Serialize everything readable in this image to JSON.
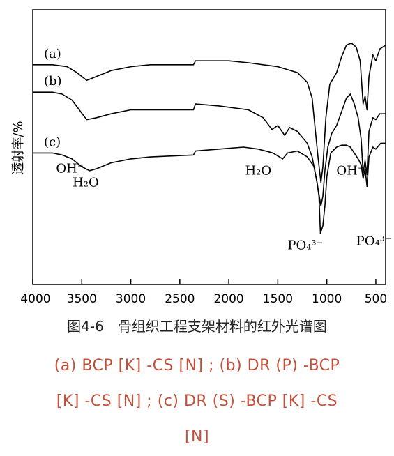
{
  "chart_data": {
    "type": "line",
    "ylabel": "透射率/%",
    "xlim": [
      4000,
      400
    ],
    "xticks": [
      4000,
      3500,
      3000,
      2500,
      2000,
      1500,
      1000,
      500
    ],
    "series": [
      {
        "name": "(a)",
        "points": [
          [
            4000,
            0.72
          ],
          [
            3800,
            0.72
          ],
          [
            3650,
            0.71
          ],
          [
            3550,
            0.68
          ],
          [
            3450,
            0.64
          ],
          [
            3400,
            0.65
          ],
          [
            3200,
            0.69
          ],
          [
            3000,
            0.71
          ],
          [
            2800,
            0.72
          ],
          [
            2360,
            0.72
          ],
          [
            2340,
            0.74
          ],
          [
            2000,
            0.74
          ],
          [
            1800,
            0.73
          ],
          [
            1500,
            0.71
          ],
          [
            1300,
            0.68
          ],
          [
            1200,
            0.63
          ],
          [
            1150,
            0.55
          ],
          [
            1120,
            0.4
          ],
          [
            1090,
            0.25
          ],
          [
            1060,
            0.12
          ],
          [
            1040,
            0.2
          ],
          [
            1010,
            0.45
          ],
          [
            970,
            0.62
          ],
          [
            900,
            0.68
          ],
          [
            850,
            0.76
          ],
          [
            800,
            0.82
          ],
          [
            750,
            0.83
          ],
          [
            700,
            0.81
          ],
          [
            660,
            0.74
          ],
          [
            630,
            0.52
          ],
          [
            610,
            0.56
          ],
          [
            590,
            0.49
          ],
          [
            570,
            0.66
          ],
          [
            530,
            0.77
          ],
          [
            500,
            0.74
          ],
          [
            460,
            0.8
          ],
          [
            400,
            0.82
          ]
        ]
      },
      {
        "name": "(b)",
        "points": [
          [
            4000,
            0.58
          ],
          [
            3800,
            0.58
          ],
          [
            3700,
            0.57
          ],
          [
            3600,
            0.54
          ],
          [
            3450,
            0.44
          ],
          [
            3350,
            0.45
          ],
          [
            3200,
            0.47
          ],
          [
            3000,
            0.49
          ],
          [
            2800,
            0.49
          ],
          [
            2360,
            0.49
          ],
          [
            2340,
            0.52
          ],
          [
            2100,
            0.51
          ],
          [
            1800,
            0.49
          ],
          [
            1650,
            0.45
          ],
          [
            1560,
            0.39
          ],
          [
            1500,
            0.41
          ],
          [
            1430,
            0.36
          ],
          [
            1380,
            0.4
          ],
          [
            1300,
            0.38
          ],
          [
            1200,
            0.32
          ],
          [
            1150,
            0.25
          ],
          [
            1100,
            0.12
          ],
          [
            1060,
            0.0
          ],
          [
            1040,
            0.05
          ],
          [
            1020,
            0.18
          ],
          [
            990,
            0.3
          ],
          [
            950,
            0.37
          ],
          [
            900,
            0.41
          ],
          [
            850,
            0.48
          ],
          [
            800,
            0.55
          ],
          [
            760,
            0.57
          ],
          [
            720,
            0.52
          ],
          [
            680,
            0.45
          ],
          [
            650,
            0.34
          ],
          [
            630,
            0.17
          ],
          [
            610,
            0.23
          ],
          [
            590,
            0.16
          ],
          [
            570,
            0.38
          ],
          [
            530,
            0.45
          ],
          [
            500,
            0.44
          ],
          [
            460,
            0.47
          ],
          [
            400,
            0.47
          ]
        ]
      },
      {
        "name": "(c)",
        "points": [
          [
            4000,
            0.27
          ],
          [
            3800,
            0.27
          ],
          [
            3700,
            0.26
          ],
          [
            3600,
            0.24
          ],
          [
            3500,
            0.2
          ],
          [
            3420,
            0.18
          ],
          [
            3350,
            0.19
          ],
          [
            3200,
            0.22
          ],
          [
            3000,
            0.24
          ],
          [
            2800,
            0.25
          ],
          [
            2360,
            0.26
          ],
          [
            2340,
            0.28
          ],
          [
            2100,
            0.29
          ],
          [
            1850,
            0.3
          ],
          [
            1700,
            0.29
          ],
          [
            1550,
            0.27
          ],
          [
            1450,
            0.24
          ],
          [
            1400,
            0.27
          ],
          [
            1300,
            0.28
          ],
          [
            1200,
            0.25
          ],
          [
            1130,
            0.2
          ],
          [
            1100,
            0.12
          ],
          [
            1080,
            0.05
          ],
          [
            1065,
            -0.14
          ],
          [
            1040,
            -0.1
          ],
          [
            1020,
            0.0
          ],
          [
            1000,
            0.15
          ],
          [
            960,
            0.27
          ],
          [
            900,
            0.3
          ],
          [
            850,
            0.31
          ],
          [
            800,
            0.31
          ],
          [
            760,
            0.3
          ],
          [
            720,
            0.27
          ],
          [
            680,
            0.24
          ],
          [
            650,
            0.21
          ],
          [
            630,
            0.14
          ],
          [
            610,
            0.19
          ],
          [
            590,
            0.1
          ],
          [
            570,
            0.25
          ],
          [
            530,
            0.3
          ],
          [
            500,
            0.29
          ],
          [
            450,
            0.32
          ],
          [
            400,
            0.32
          ]
        ]
      }
    ],
    "annotations": [
      {
        "label": "OH⁻",
        "x": 3620,
        "y": 0.17
      },
      {
        "label": "H₂O",
        "x": 3460,
        "y": 0.1
      },
      {
        "label": "H₂O",
        "x": 1700,
        "y": 0.16
      },
      {
        "label": "OH⁻",
        "x": 760,
        "y": 0.16
      },
      {
        "label": "PO₄³⁻",
        "x": 1220,
        "y": -0.22
      },
      {
        "label": "PO₄³⁻",
        "x": 520,
        "y": -0.2
      }
    ]
  },
  "figure_title": "图4-6　骨组织工程支架材料的红外光谱图",
  "caption": {
    "line1": "(a) BCP [K] -CS [N] ;  (b) DR (P) -BCP",
    "line2": "[K] -CS [N] ;  (c) DR (S) -BCP [K] -CS",
    "line3": "[N]"
  }
}
